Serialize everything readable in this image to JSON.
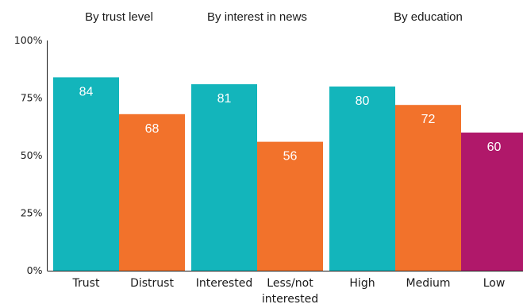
{
  "chart_data": {
    "type": "bar",
    "ylim": [
      0,
      100
    ],
    "yticks": [
      "0%",
      "25%",
      "50%",
      "75%",
      "100%"
    ],
    "ytick_values": [
      0,
      25,
      50,
      75,
      100
    ],
    "grid": false,
    "groups": [
      {
        "title": "By trust level",
        "bars": [
          {
            "label": [
              "Trust"
            ],
            "value": 84,
            "color": "#13b5bb"
          },
          {
            "label": [
              "Distrust"
            ],
            "value": 68,
            "color": "#f2722b"
          }
        ]
      },
      {
        "title": "By interest in news",
        "bars": [
          {
            "label": [
              "Interested"
            ],
            "value": 81,
            "color": "#13b5bb"
          },
          {
            "label": [
              "Less/not",
              "interested"
            ],
            "value": 56,
            "color": "#f2722b"
          }
        ]
      },
      {
        "title": "By education",
        "bars": [
          {
            "label": [
              "High"
            ],
            "value": 80,
            "color": "#13b5bb"
          },
          {
            "label": [
              "Medium"
            ],
            "value": 72,
            "color": "#f2722b"
          },
          {
            "label": [
              "Low"
            ],
            "value": 60,
            "color": "#b0186a"
          }
        ]
      }
    ]
  }
}
